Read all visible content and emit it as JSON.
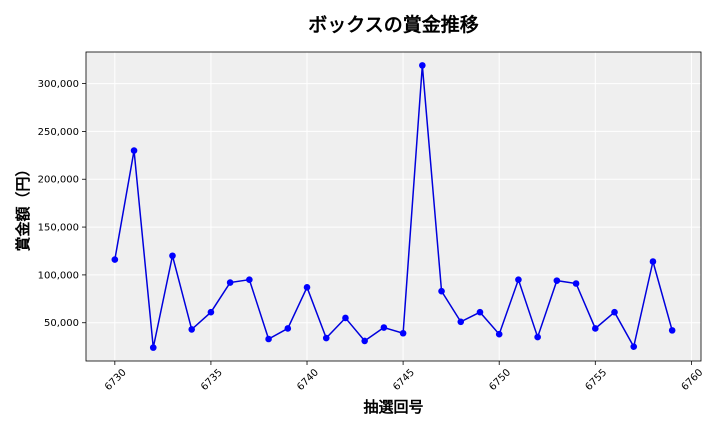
{
  "chart_data": {
    "type": "line",
    "title": "ボックスの賞金推移",
    "xlabel": "抽選回号",
    "ylabel": "賞金額（円）",
    "xlim": [
      6728.5,
      6760.5
    ],
    "ylim": [
      10000,
      333000
    ],
    "xticks": [
      6730,
      6735,
      6740,
      6745,
      6750,
      6755,
      6760
    ],
    "yticks": [
      50000,
      100000,
      150000,
      200000,
      250000,
      300000
    ],
    "ytick_labels": [
      "50,000",
      "100,000",
      "150,000",
      "200,000",
      "250,000",
      "300,000"
    ],
    "grid": true,
    "line_color": "#0000dd",
    "marker_color": "#0000ff",
    "plot_background": "#efefef",
    "series": [
      {
        "x": [
          6730,
          6731,
          6732,
          6733,
          6734,
          6735,
          6736,
          6737,
          6738,
          6739,
          6740,
          6741,
          6742,
          6743,
          6744,
          6745,
          6746,
          6747,
          6748,
          6749,
          6750,
          6751,
          6752,
          6753,
          6754,
          6755,
          6756,
          6757,
          6758,
          6759
        ],
        "y": [
          116000,
          230000,
          24000,
          120000,
          43000,
          61000,
          92000,
          95000,
          33000,
          44000,
          87000,
          34000,
          55000,
          31000,
          45000,
          39000,
          319000,
          83000,
          51000,
          61000,
          38000,
          95000,
          35000,
          94000,
          91000,
          44000,
          61000,
          25000,
          114000,
          42000
        ]
      }
    ]
  }
}
